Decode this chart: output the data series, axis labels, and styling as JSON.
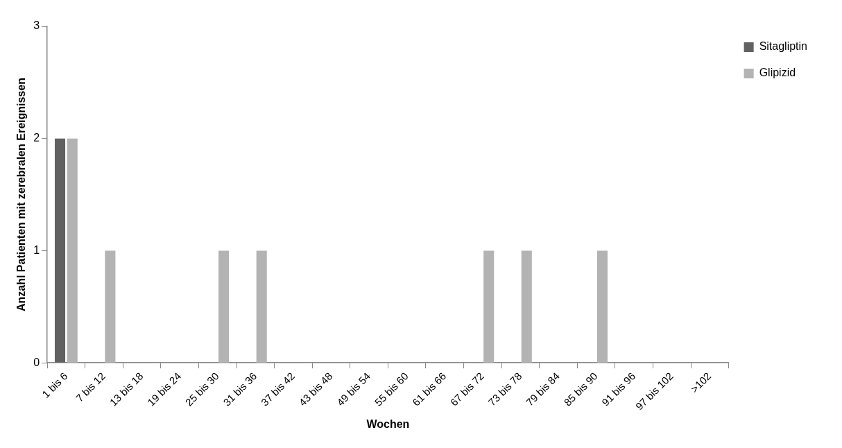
{
  "chart_data": {
    "type": "bar",
    "xlabel": "Wochen",
    "ylabel": "Anzahl Patienten mit zerebralen Ereignissen",
    "categories": [
      "1 bis 6",
      "7 bis 12",
      "13 bis 18",
      "19 bis 24",
      "25 bis 30",
      "31 bis 36",
      "37 bis 42",
      "43 bis 48",
      "49 bis 54",
      "55 bis 60",
      "61 bis 66",
      "67 bis 72",
      "73 bis 78",
      "79 bis 84",
      "85 bis 90",
      "91 bis 96",
      "97 bis 102",
      ">102"
    ],
    "series": [
      {
        "name": "Sitagliptin",
        "color": "#616161",
        "values": [
          2,
          0,
          0,
          0,
          0,
          0,
          0,
          0,
          0,
          0,
          0,
          0,
          0,
          0,
          0,
          0,
          0,
          0
        ]
      },
      {
        "name": "Glipizid",
        "color": "#b3b3b3",
        "values": [
          2,
          1,
          0,
          0,
          1,
          1,
          0,
          0,
          0,
          0,
          0,
          1,
          1,
          0,
          1,
          0,
          0,
          0
        ]
      }
    ],
    "ylim": [
      0,
      3
    ],
    "yticks": [
      0,
      1,
      2,
      3
    ],
    "grid": false,
    "legend": "top right"
  }
}
